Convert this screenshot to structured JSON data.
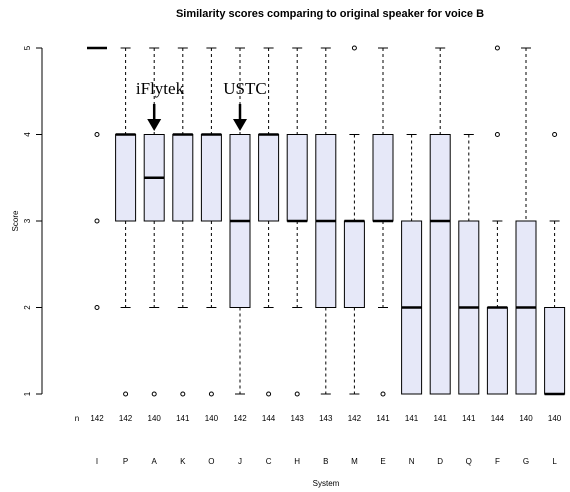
{
  "chart_data": {
    "type": "box",
    "title": "Similarity scores comparing to original speaker for voice B",
    "y_label": "Score",
    "x_label": "System",
    "n_label": "n",
    "categories": [
      "I",
      "P",
      "A",
      "K",
      "O",
      "J",
      "C",
      "H",
      "B",
      "M",
      "E",
      "N",
      "D",
      "Q",
      "F",
      "G",
      "L"
    ],
    "counts": [
      142,
      142,
      140,
      141,
      140,
      142,
      144,
      143,
      143,
      142,
      141,
      141,
      141,
      141,
      144,
      140,
      140
    ],
    "boxes": [
      {
        "whisker_low": 5,
        "q1": 5,
        "median": 5,
        "q3": 5,
        "whisker_high": 5,
        "outliers": [
          4,
          3,
          2
        ]
      },
      {
        "whisker_low": 2,
        "q1": 3,
        "median": 4,
        "q3": 4,
        "whisker_high": 5,
        "outliers": [
          1
        ]
      },
      {
        "whisker_low": 2,
        "q1": 3,
        "median": 3.5,
        "q3": 4,
        "whisker_high": 5,
        "outliers": [
          1
        ]
      },
      {
        "whisker_low": 2,
        "q1": 3,
        "median": 4,
        "q3": 4,
        "whisker_high": 5,
        "outliers": [
          1
        ]
      },
      {
        "whisker_low": 2,
        "q1": 3,
        "median": 4,
        "q3": 4,
        "whisker_high": 5,
        "outliers": [
          1
        ]
      },
      {
        "whisker_low": 1,
        "q1": 2,
        "median": 3,
        "q3": 4,
        "whisker_high": 5,
        "outliers": []
      },
      {
        "whisker_low": 2,
        "q1": 3,
        "median": 4,
        "q3": 4,
        "whisker_high": 5,
        "outliers": [
          1
        ]
      },
      {
        "whisker_low": 2,
        "q1": 3,
        "median": 3,
        "q3": 4,
        "whisker_high": 5,
        "outliers": [
          1
        ]
      },
      {
        "whisker_low": 1,
        "q1": 2,
        "median": 3,
        "q3": 4,
        "whisker_high": 5,
        "outliers": []
      },
      {
        "whisker_low": 1,
        "q1": 2,
        "median": 3,
        "q3": 3,
        "whisker_high": 4,
        "outliers": [
          5
        ]
      },
      {
        "whisker_low": 2,
        "q1": 3,
        "median": 3,
        "q3": 4,
        "whisker_high": 5,
        "outliers": [
          1
        ]
      },
      {
        "whisker_low": 1,
        "q1": 1,
        "median": 2,
        "q3": 3,
        "whisker_high": 4,
        "outliers": []
      },
      {
        "whisker_low": 1,
        "q1": 1,
        "median": 3,
        "q3": 4,
        "whisker_high": 5,
        "outliers": []
      },
      {
        "whisker_low": 1,
        "q1": 1,
        "median": 2,
        "q3": 3,
        "whisker_high": 4,
        "outliers": []
      },
      {
        "whisker_low": 1,
        "q1": 1,
        "median": 2,
        "q3": 2,
        "whisker_high": 3,
        "outliers": [
          5,
          4
        ]
      },
      {
        "whisker_low": 1,
        "q1": 1,
        "median": 2,
        "q3": 3,
        "whisker_high": 5,
        "outliers": []
      },
      {
        "whisker_low": 1,
        "q1": 1,
        "median": 1,
        "q3": 2,
        "whisker_high": 3,
        "outliers": [
          4
        ]
      }
    ],
    "color": "#e6e8f8",
    "annotations": [
      "iFlytek",
      "USTC"
    ],
    "ylim": [
      1,
      5
    ],
    "yticks": [
      1,
      2,
      3,
      4,
      5
    ]
  }
}
